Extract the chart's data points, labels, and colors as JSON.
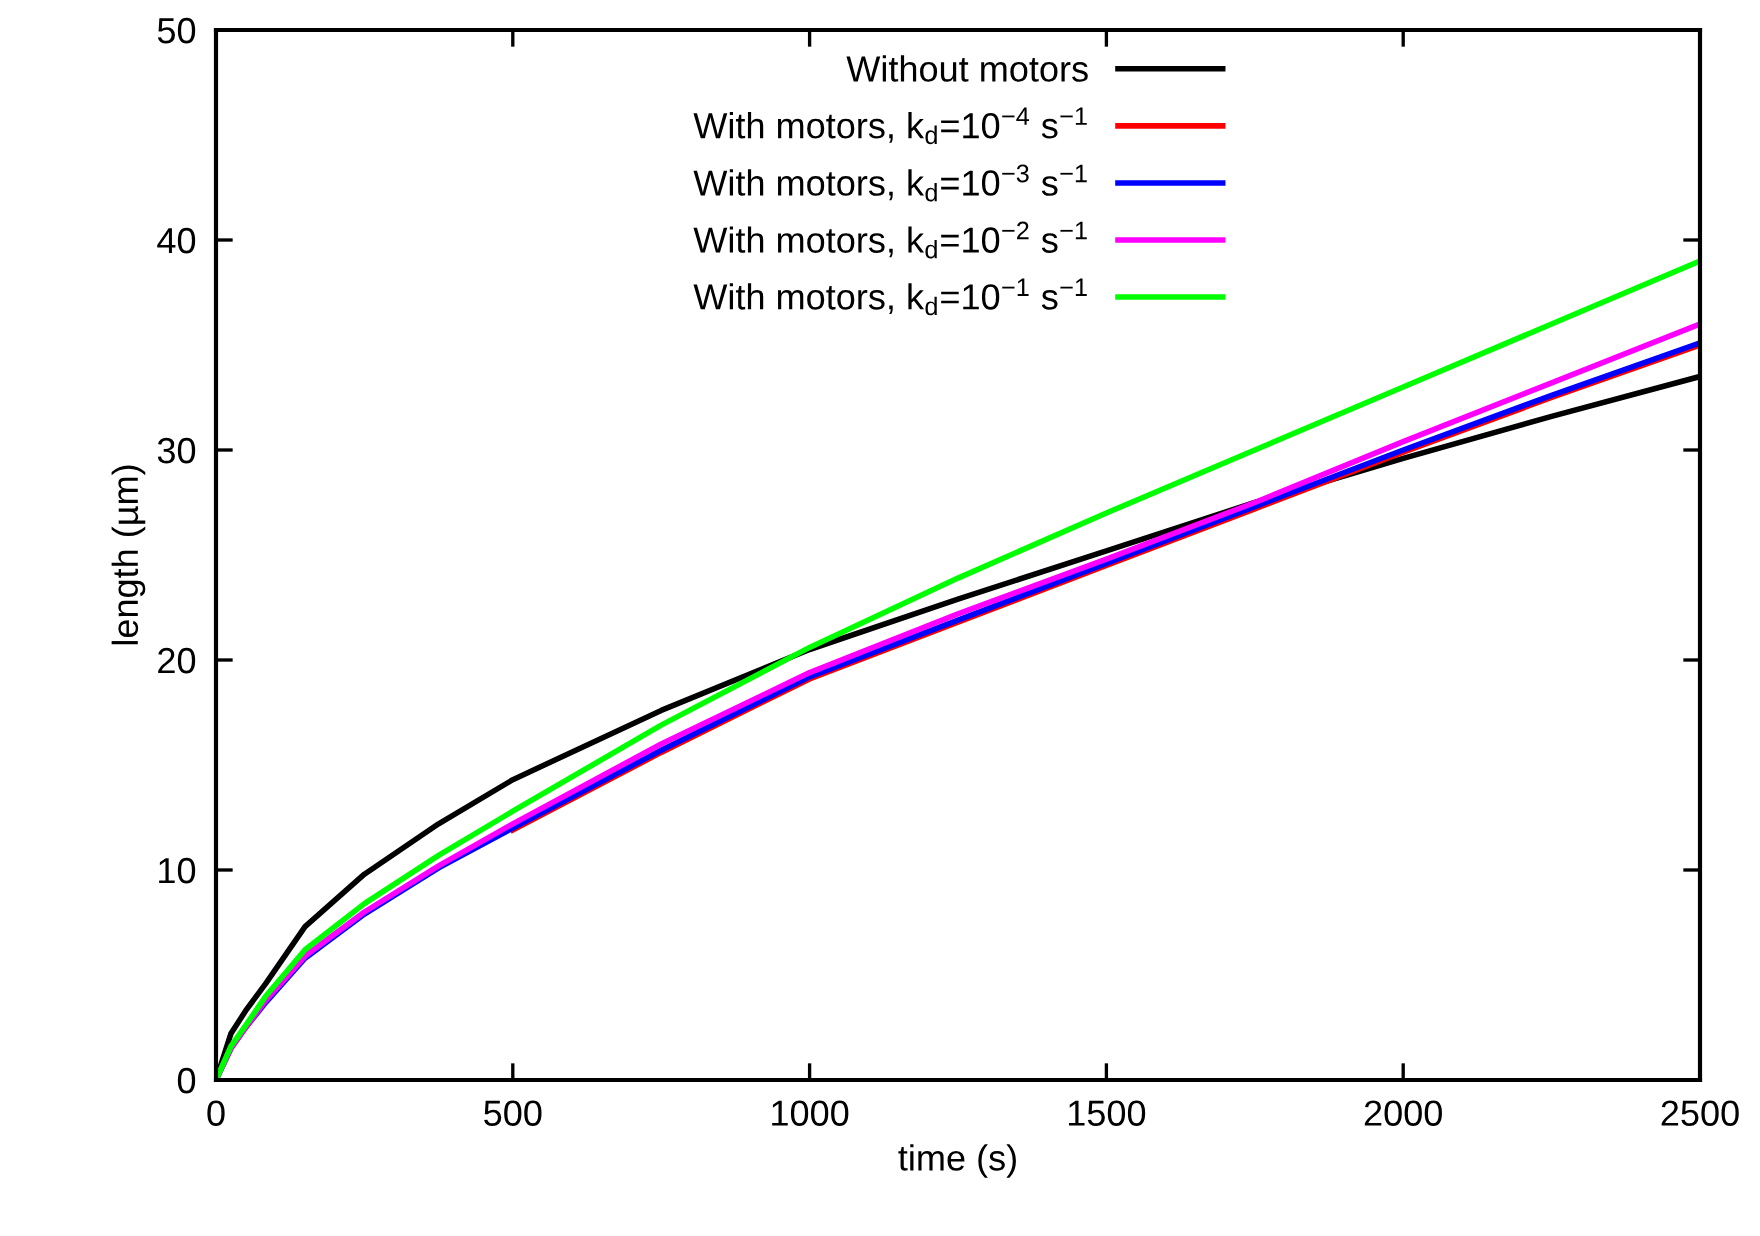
{
  "chart_data": {
    "type": "line",
    "xlabel": "time (s)",
    "ylabel": "length (µm)",
    "x": [
      0,
      25,
      50,
      84,
      150,
      250,
      375,
      500,
      750,
      1000,
      1250,
      1500,
      1750,
      2000,
      2250,
      2500
    ],
    "series": [
      {
        "name": "Without motors",
        "color": "#000000",
        "values": [
          0,
          2.2,
          3.3,
          4.6,
          7.3,
          9.8,
          12.2,
          14.3,
          17.6,
          20.5,
          22.9,
          25.2,
          27.5,
          29.6,
          31.6,
          33.5
        ]
      },
      {
        "name": "With motors, k$_{d}$=10$^{−4}$ s$^{−1}$",
        "color": "#ff0000",
        "values": [
          null,
          null,
          null,
          null,
          null,
          null,
          null,
          11.9,
          15.6,
          19.1,
          21.8,
          24.5,
          27.2,
          29.9,
          32.5,
          35.0
        ]
      },
      {
        "name": "With motors, k$_{d}$=10$^{−3}$ s$^{−1}$",
        "color": "#0000ff",
        "values": [
          0,
          1.5,
          2.5,
          3.7,
          5.8,
          7.9,
          10.1,
          12.0,
          15.7,
          19.2,
          21.9,
          24.6,
          27.3,
          30.0,
          32.6,
          35.1
        ]
      },
      {
        "name": "With motors, k$_{d}$=10$^{−2}$ s$^{−1}$",
        "color": "#ff00ff",
        "values": [
          0,
          1.5,
          2.5,
          3.8,
          5.9,
          8.0,
          10.2,
          12.2,
          16.0,
          19.4,
          22.2,
          24.8,
          27.5,
          30.4,
          33.2,
          36.0
        ]
      },
      {
        "name": "With motors, k$_{d}$=10$^{−1}$ s$^{−1}$",
        "color": "#00ff00",
        "values": [
          0,
          1.6,
          2.6,
          4.0,
          6.2,
          8.4,
          10.7,
          12.8,
          16.9,
          20.6,
          23.9,
          27.0,
          30.0,
          33.0,
          36.0,
          39.0
        ]
      }
    ],
    "xlim": [
      0,
      2500
    ],
    "xticks": [
      0,
      500,
      1000,
      1500,
      2000,
      2500
    ],
    "ylim": [
      0,
      50
    ],
    "yticks": [
      0,
      10,
      20,
      30,
      40,
      50
    ],
    "grid": false,
    "legend": "top",
    "marker": "none",
    "line_style": "solid"
  }
}
